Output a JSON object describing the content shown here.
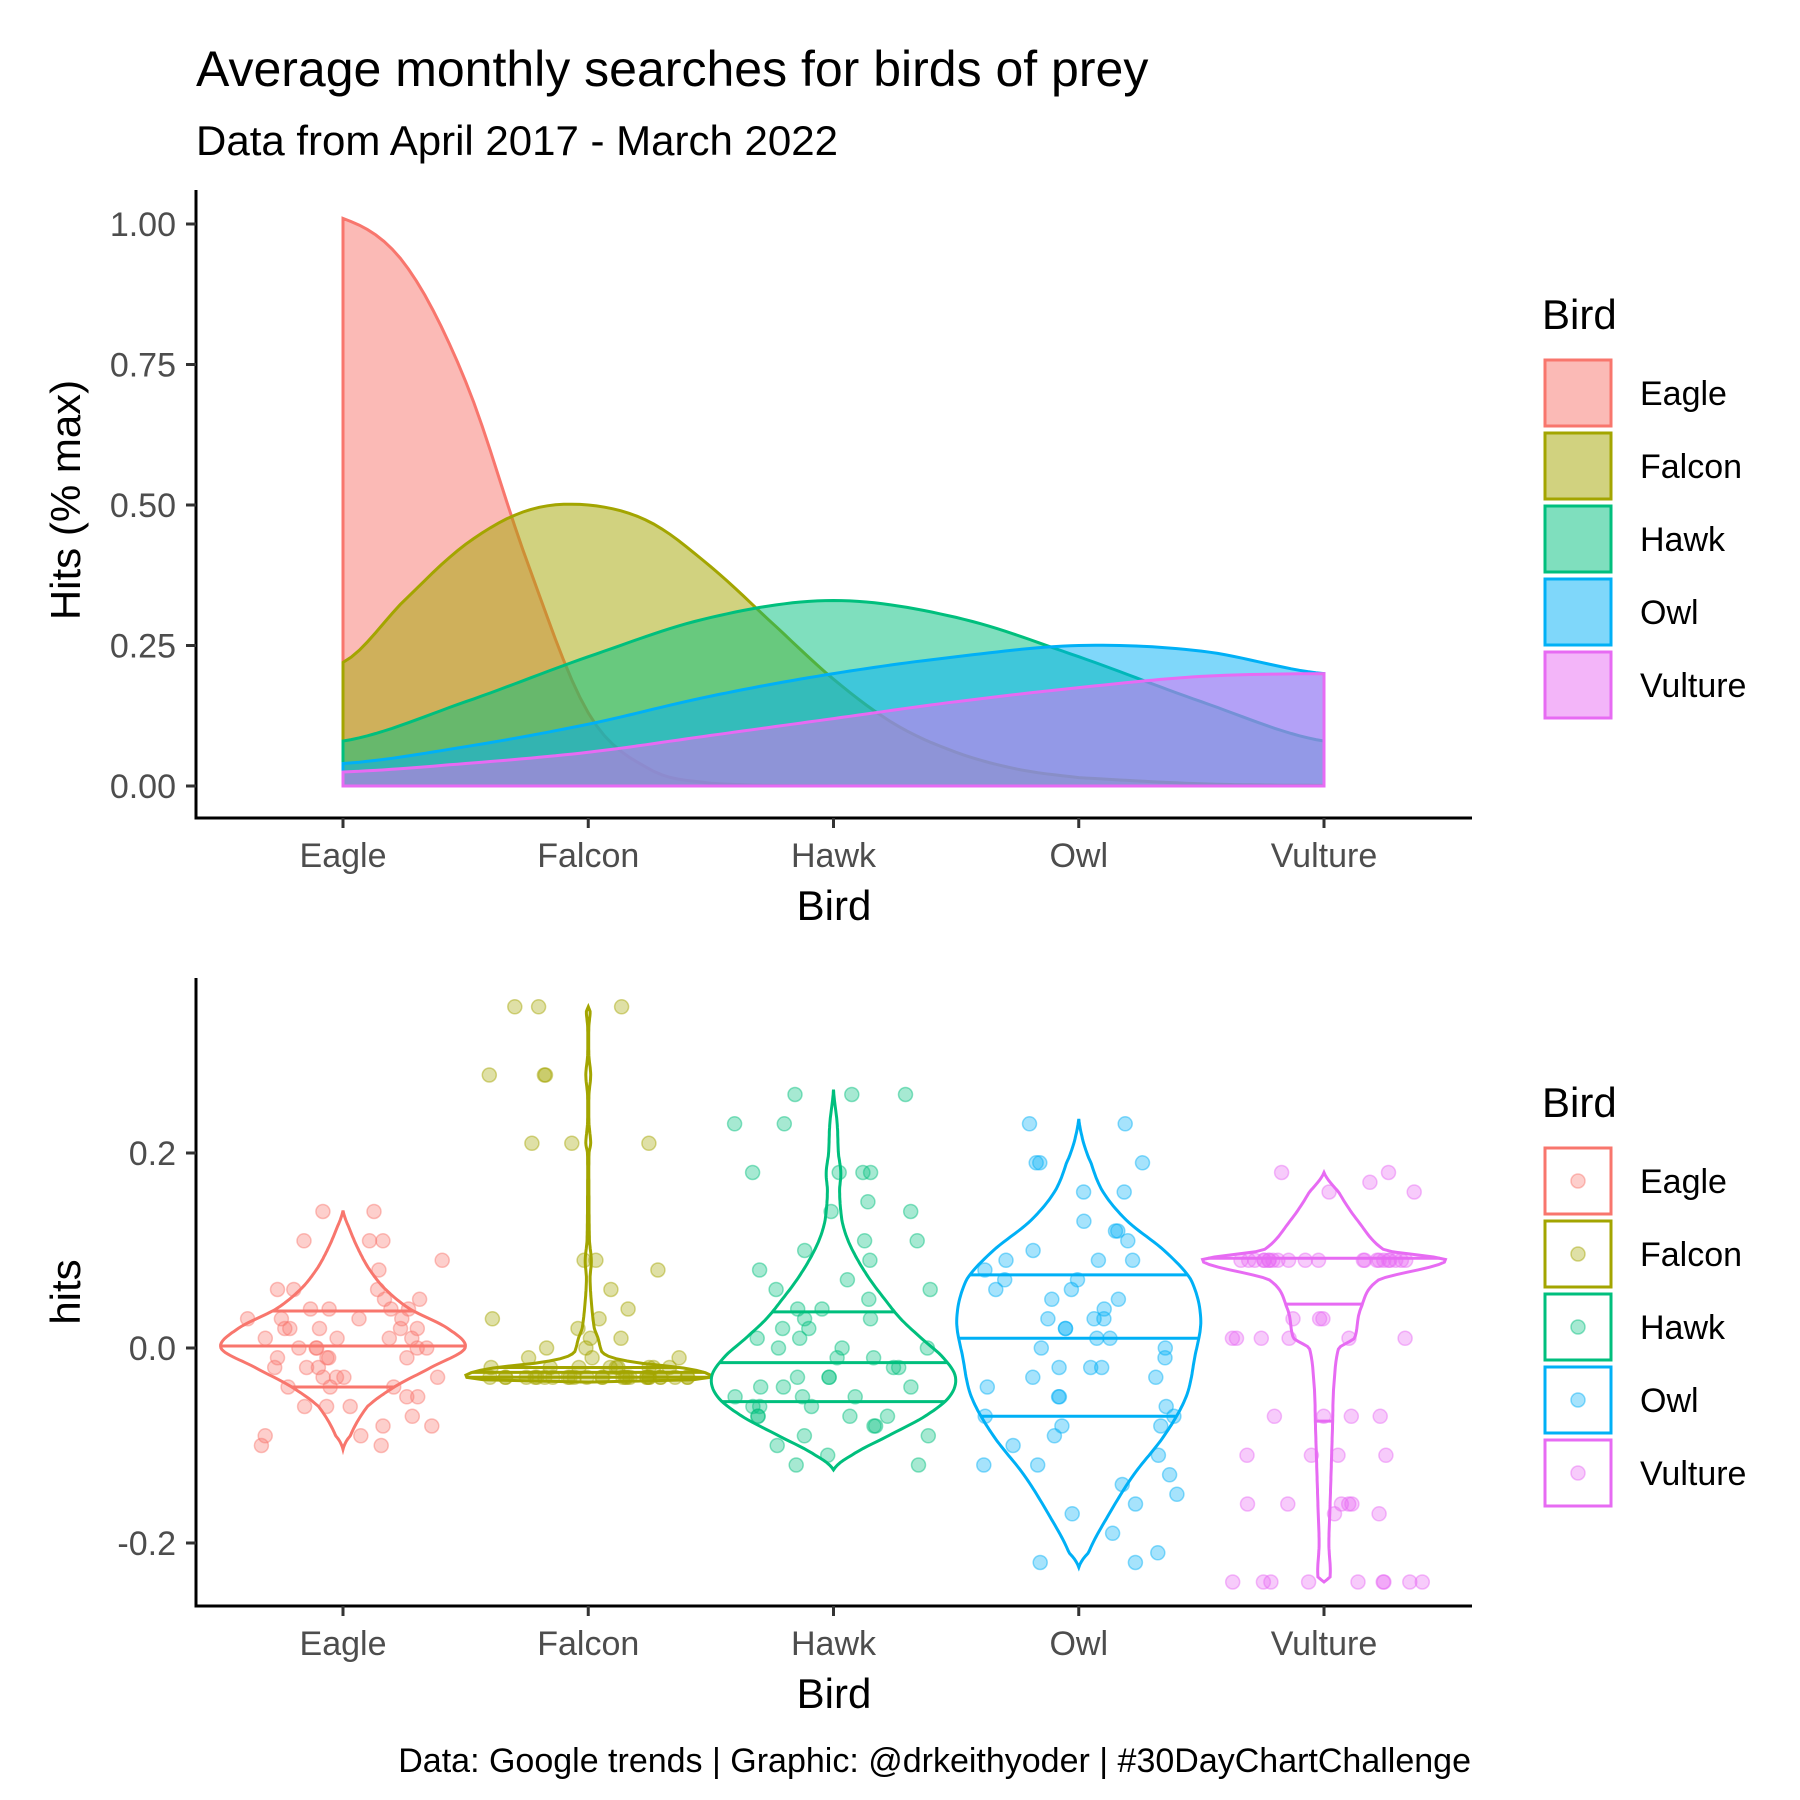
{
  "chart_data": [
    {
      "type": "area",
      "title": "Average monthly searches for birds of prey",
      "subtitle": "Data from April 2017 - March 2022",
      "xlabel": "Bird",
      "ylabel": "Hits (% max)",
      "categories": [
        "Eagle",
        "Falcon",
        "Hawk",
        "Owl",
        "Vulture"
      ],
      "ylim": [
        0,
        1
      ],
      "yticks": [
        "0.00",
        "0.25",
        "0.50",
        "0.75",
        "1.00"
      ],
      "grid": false,
      "legend": {
        "title": "Bird",
        "position": "right",
        "entries": [
          "Eagle",
          "Falcon",
          "Hawk",
          "Owl",
          "Vulture"
        ]
      },
      "series": [
        {
          "name": "Eagle",
          "color": "#F8766D",
          "x": [
            1,
            1.25,
            1.5,
            1.75,
            2,
            2.25,
            2.5,
            3,
            3.5,
            4,
            4.5,
            5
          ],
          "values": [
            1.01,
            0.93,
            0.72,
            0.4,
            0.13,
            0.03,
            0.005,
            0.0,
            0.0,
            0.0,
            0.0,
            0.0
          ]
        },
        {
          "name": "Falcon",
          "color": "#A3A500",
          "x": [
            1,
            1.25,
            1.5,
            1.75,
            2,
            2.25,
            2.5,
            2.75,
            3,
            3.25,
            3.5,
            3.75,
            4,
            4.5,
            5
          ],
          "values": [
            0.22,
            0.33,
            0.43,
            0.49,
            0.5,
            0.47,
            0.39,
            0.29,
            0.19,
            0.11,
            0.06,
            0.03,
            0.015,
            0.004,
            0.001
          ]
        },
        {
          "name": "Hawk",
          "color": "#00BF7D",
          "x": [
            1,
            1.5,
            2,
            2.5,
            3,
            3.5,
            4,
            4.5,
            5
          ],
          "values": [
            0.08,
            0.15,
            0.23,
            0.3,
            0.33,
            0.3,
            0.23,
            0.15,
            0.08
          ]
        },
        {
          "name": "Owl",
          "color": "#00B0F6",
          "x": [
            1,
            1.5,
            2,
            2.5,
            3,
            3.5,
            4,
            4.5,
            5
          ],
          "values": [
            0.04,
            0.07,
            0.11,
            0.16,
            0.2,
            0.23,
            0.25,
            0.24,
            0.2
          ]
        },
        {
          "name": "Vulture",
          "color": "#E76BF3",
          "x": [
            1,
            1.5,
            2,
            2.5,
            3,
            3.5,
            4,
            4.5,
            5
          ],
          "values": [
            0.025,
            0.04,
            0.06,
            0.09,
            0.12,
            0.15,
            0.175,
            0.195,
            0.2
          ]
        }
      ]
    },
    {
      "type": "scatter",
      "subtype": "violin with jittered points",
      "xlabel": "Bird",
      "ylabel": "hits",
      "categories": [
        "Eagle",
        "Falcon",
        "Hawk",
        "Owl",
        "Vulture"
      ],
      "ylim": [
        -0.25,
        0.37
      ],
      "yticks": [
        "-0.2",
        "0.0",
        "0.2"
      ],
      "grid": false,
      "legend": {
        "title": "Bird",
        "position": "right",
        "entries": [
          "Eagle",
          "Falcon",
          "Hawk",
          "Owl",
          "Vulture"
        ]
      },
      "series": [
        {
          "name": "Eagle",
          "color": "#F8766D",
          "n": 60,
          "min": -0.104,
          "max": 0.141,
          "quartiles": [
            -0.04,
            0.002,
            0.038
          ],
          "violin": [
            [
              -0.104,
              0.0
            ],
            [
              -0.09,
              0.06
            ],
            [
              -0.06,
              0.2
            ],
            [
              -0.04,
              0.42
            ],
            [
              -0.02,
              0.72
            ],
            [
              0.0,
              1.0
            ],
            [
              0.02,
              0.86
            ],
            [
              0.04,
              0.55
            ],
            [
              0.06,
              0.35
            ],
            [
              0.08,
              0.22
            ],
            [
              0.1,
              0.13
            ],
            [
              0.12,
              0.06
            ],
            [
              0.141,
              0.0
            ]
          ],
          "jitter_values": [
            0.14,
            0.11,
            0.11,
            0.09,
            0.08,
            0.06,
            0.06,
            0.05,
            0.05,
            0.04,
            0.04,
            0.04,
            0.03,
            0.03,
            0.03,
            0.02,
            0.02,
            0.02,
            0.02,
            0.01,
            0.01,
            0.01,
            0.01,
            0.0,
            0.0,
            0.0,
            0.0,
            0.0,
            -0.01,
            -0.01,
            -0.01,
            -0.01,
            -0.02,
            -0.02,
            -0.02,
            -0.03,
            -0.03,
            -0.03,
            -0.04,
            -0.04,
            -0.04,
            -0.05,
            -0.05,
            -0.06,
            -0.06,
            -0.07,
            -0.08,
            -0.09,
            -0.09,
            -0.1,
            -0.1,
            0.14,
            0.11,
            0.06,
            0.02,
            -0.03,
            -0.06,
            -0.08,
            0.04,
            0.03
          ]
        },
        {
          "name": "Falcon",
          "color": "#A3A500",
          "n": 60,
          "min": -0.035,
          "max": 0.35,
          "quartiles": [
            -0.03,
            -0.025,
            -0.02
          ],
          "violin": [
            [
              -0.035,
              0.0
            ],
            [
              -0.033,
              0.8
            ],
            [
              -0.03,
              1.0
            ],
            [
              -0.025,
              0.95
            ],
            [
              -0.02,
              0.75
            ],
            [
              -0.015,
              0.4
            ],
            [
              -0.01,
              0.2
            ],
            [
              -0.005,
              0.12
            ],
            [
              0.0,
              0.1
            ],
            [
              0.01,
              0.08
            ],
            [
              0.02,
              0.05
            ],
            [
              0.04,
              0.03
            ],
            [
              0.07,
              0.015
            ],
            [
              0.09,
              0.025
            ],
            [
              0.11,
              0.01
            ],
            [
              0.15,
              0.006
            ],
            [
              0.2,
              0.006
            ],
            [
              0.21,
              0.02
            ],
            [
              0.23,
              0.006
            ],
            [
              0.26,
              0.006
            ],
            [
              0.28,
              0.02
            ],
            [
              0.3,
              0.005
            ],
            [
              0.33,
              0.005
            ],
            [
              0.345,
              0.015
            ],
            [
              0.35,
              0.0
            ]
          ],
          "jitter_values": [
            0.35,
            0.35,
            0.35,
            0.28,
            0.28,
            0.28,
            0.21,
            0.21,
            0.21,
            0.09,
            0.09,
            0.08,
            0.06,
            0.04,
            0.03,
            0.03,
            0.02,
            0.01,
            0.01,
            0.0,
            0.0,
            -0.01,
            -0.01,
            -0.01,
            -0.02,
            -0.02,
            -0.02,
            -0.02,
            -0.02,
            -0.03,
            -0.03,
            -0.03,
            -0.03,
            -0.03,
            -0.03,
            -0.03,
            -0.03,
            -0.03,
            -0.03,
            -0.03,
            -0.03,
            -0.03,
            -0.03,
            -0.03,
            -0.03,
            -0.03,
            -0.02,
            -0.02,
            -0.02,
            -0.03,
            -0.03,
            -0.03,
            -0.03,
            -0.03,
            -0.03,
            -0.03,
            -0.03,
            -0.02,
            -0.03,
            -0.03
          ]
        },
        {
          "name": "Hawk",
          "color": "#00BF7D",
          "n": 60,
          "min": -0.125,
          "max": 0.265,
          "quartiles": [
            -0.055,
            -0.015,
            0.037
          ],
          "violin": [
            [
              -0.125,
              0.0
            ],
            [
              -0.11,
              0.15
            ],
            [
              -0.09,
              0.45
            ],
            [
              -0.07,
              0.75
            ],
            [
              -0.05,
              0.95
            ],
            [
              -0.03,
              1.0
            ],
            [
              -0.01,
              0.9
            ],
            [
              0.01,
              0.72
            ],
            [
              0.03,
              0.55
            ],
            [
              0.05,
              0.42
            ],
            [
              0.07,
              0.3
            ],
            [
              0.09,
              0.2
            ],
            [
              0.11,
              0.12
            ],
            [
              0.13,
              0.07
            ],
            [
              0.16,
              0.05
            ],
            [
              0.18,
              0.06
            ],
            [
              0.2,
              0.04
            ],
            [
              0.23,
              0.03
            ],
            [
              0.265,
              0.0
            ]
          ],
          "jitter_values": [
            0.26,
            0.26,
            0.26,
            0.23,
            0.23,
            0.18,
            0.18,
            0.18,
            0.15,
            0.14,
            0.11,
            0.11,
            0.09,
            0.08,
            0.07,
            0.06,
            0.05,
            0.04,
            0.04,
            0.03,
            0.03,
            0.02,
            0.02,
            0.01,
            0.01,
            0.0,
            0.0,
            -0.01,
            -0.01,
            -0.02,
            -0.02,
            -0.03,
            -0.03,
            -0.03,
            -0.04,
            -0.04,
            -0.05,
            -0.05,
            -0.05,
            -0.06,
            -0.06,
            -0.06,
            -0.07,
            -0.07,
            -0.07,
            -0.08,
            -0.08,
            -0.09,
            -0.1,
            -0.11,
            -0.12,
            -0.12,
            0.18,
            0.14,
            0.1,
            0.06,
            0.0,
            -0.04,
            -0.07,
            -0.09
          ]
        },
        {
          "name": "Owl",
          "color": "#00B0F6",
          "n": 60,
          "min": -0.225,
          "max": 0.235,
          "quartiles": [
            -0.07,
            0.01,
            0.075
          ],
          "violin": [
            [
              -0.225,
              0.0
            ],
            [
              -0.21,
              0.08
            ],
            [
              -0.17,
              0.25
            ],
            [
              -0.13,
              0.45
            ],
            [
              -0.09,
              0.7
            ],
            [
              -0.05,
              0.88
            ],
            [
              -0.01,
              0.95
            ],
            [
              0.03,
              1.0
            ],
            [
              0.07,
              0.92
            ],
            [
              0.1,
              0.7
            ],
            [
              0.13,
              0.4
            ],
            [
              0.16,
              0.2
            ],
            [
              0.19,
              0.1
            ],
            [
              0.21,
              0.04
            ],
            [
              0.235,
              0.0
            ]
          ],
          "jitter_values": [
            0.23,
            0.23,
            0.19,
            0.19,
            0.19,
            0.16,
            0.16,
            0.13,
            0.12,
            0.12,
            0.1,
            0.09,
            0.09,
            0.08,
            0.07,
            0.07,
            0.06,
            0.05,
            0.05,
            0.04,
            0.03,
            0.03,
            0.02,
            0.02,
            0.01,
            0.0,
            0.0,
            -0.01,
            -0.02,
            -0.02,
            -0.03,
            -0.03,
            -0.04,
            -0.05,
            -0.05,
            -0.06,
            -0.07,
            -0.07,
            -0.08,
            -0.09,
            -0.1,
            -0.11,
            -0.12,
            -0.13,
            -0.14,
            -0.15,
            -0.16,
            -0.17,
            -0.19,
            -0.21,
            -0.22,
            -0.22,
            0.09,
            0.03,
            -0.02,
            0.06,
            -0.08,
            0.11,
            -0.12,
            0.01
          ]
        },
        {
          "name": "Vulture",
          "color": "#E76BF3",
          "n": 60,
          "min": -0.24,
          "max": 0.18,
          "quartiles": [
            -0.075,
            0.045,
            0.092
          ],
          "violin": [
            [
              -0.24,
              0.0
            ],
            [
              -0.235,
              0.05
            ],
            [
              -0.2,
              0.04
            ],
            [
              -0.16,
              0.05
            ],
            [
              -0.12,
              0.06
            ],
            [
              -0.08,
              0.07
            ],
            [
              -0.04,
              0.08
            ],
            [
              0.0,
              0.12
            ],
            [
              0.01,
              0.25
            ],
            [
              0.04,
              0.3
            ],
            [
              0.07,
              0.45
            ],
            [
              0.09,
              1.0
            ],
            [
              0.1,
              0.5
            ],
            [
              0.13,
              0.28
            ],
            [
              0.16,
              0.12
            ],
            [
              0.18,
              0.0
            ]
          ],
          "jitter_values": [
            0.18,
            0.18,
            0.17,
            0.16,
            0.16,
            0.09,
            0.09,
            0.09,
            0.09,
            0.09,
            0.09,
            0.09,
            0.09,
            0.09,
            0.09,
            0.09,
            0.09,
            0.09,
            0.09,
            0.09,
            0.09,
            0.09,
            0.09,
            0.09,
            0.09,
            0.03,
            0.03,
            0.03,
            0.01,
            0.01,
            0.01,
            0.01,
            0.01,
            0.01,
            -0.07,
            -0.07,
            -0.07,
            -0.07,
            -0.11,
            -0.11,
            -0.11,
            -0.11,
            -0.16,
            -0.16,
            -0.16,
            -0.16,
            -0.16,
            -0.17,
            -0.17,
            -0.24,
            -0.24,
            -0.24,
            -0.24,
            -0.24,
            -0.24,
            -0.24,
            -0.24,
            -0.24,
            0.09,
            0.09
          ]
        }
      ]
    }
  ],
  "caption": "Data: Google trends | Graphic: @drkeithyoder | #30DayChartChallenge"
}
